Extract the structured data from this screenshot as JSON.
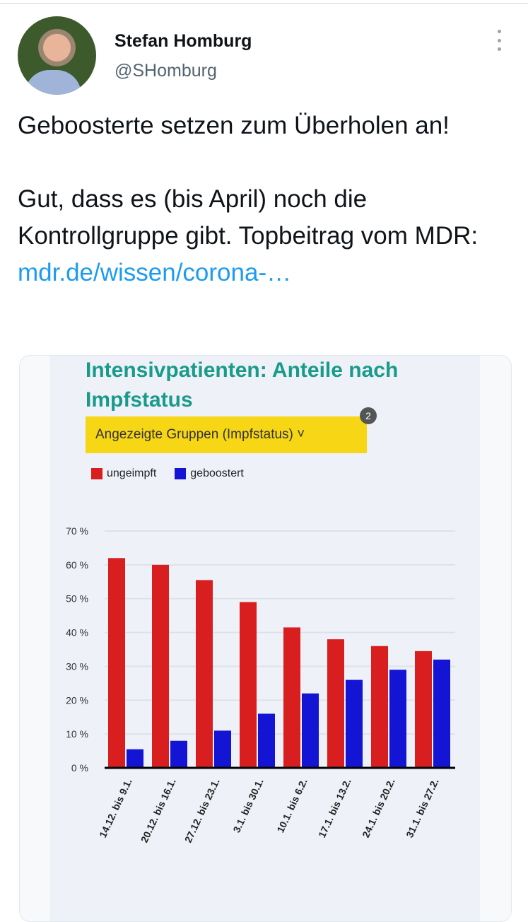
{
  "tweet": {
    "author_name": "Stefan Homburg",
    "handle": "@SHomburg",
    "text_line1": "Geboosterte setzen zum Überholen an!",
    "text_line2": "Gut, dass es (bis April) noch die Kontrollgruppe gibt. Topbeitrag vom MDR: ",
    "link": "mdr.de/wissen/corona-…",
    "more_icon": "more-vertical-icon"
  },
  "embed": {
    "title": "Intensivpatienten: Anteile nach Impfstatus",
    "dropdown_label": "Angezeigte Gruppen (Impfstatus) ˅",
    "badge": "2"
  },
  "chart_data": {
    "type": "bar",
    "title": "Intensivpatienten: Anteile nach Impfstatus",
    "categories": [
      "14.12. bis 9.1.",
      "20.12. bis 16.1.",
      "27.12. bis 23.1.",
      "3.1. bis 30.1.",
      "10.1. bis 6.2.",
      "17.1. bis 13.2.",
      "24.1. bis 20.2.",
      "31.1. bis 27.2."
    ],
    "series": [
      {
        "name": "ungeimpft",
        "color": "#d81e1e",
        "values": [
          62,
          60,
          55.5,
          49,
          41.5,
          38,
          36,
          34.5
        ]
      },
      {
        "name": "geboostert",
        "color": "#1414d4",
        "values": [
          5.5,
          8,
          11,
          16,
          22,
          26,
          29,
          32
        ]
      }
    ],
    "yticks": [
      "0 %",
      "10 %",
      "20 %",
      "30 %",
      "40 %",
      "50 %",
      "60 %",
      "70 %"
    ],
    "ylim": [
      0,
      70
    ],
    "grid": true,
    "legend": "top-left"
  }
}
